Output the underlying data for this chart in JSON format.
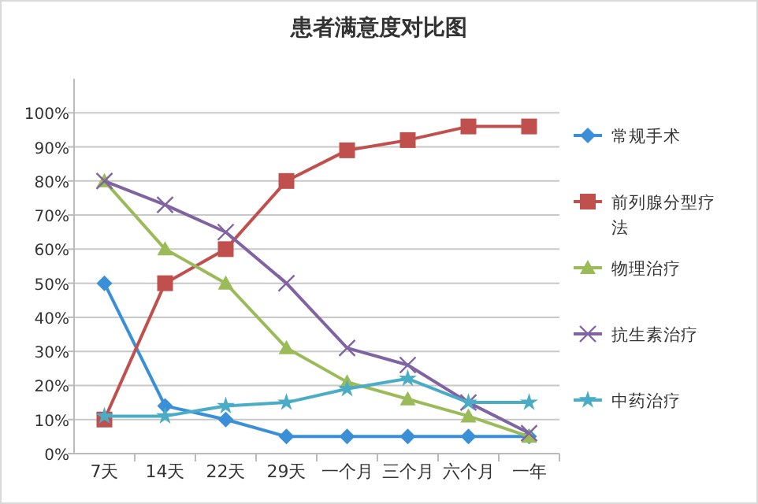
{
  "chart_data": {
    "type": "line",
    "title": "患者满意度对比图",
    "categories": [
      "7天",
      "14天",
      "22天",
      "29天",
      "一个月",
      "三个月",
      "六个月",
      "一年"
    ],
    "series": [
      {
        "name": "常规手术",
        "color": "#3a8fd6",
        "marker": "diamond",
        "values": [
          50,
          14,
          10,
          5,
          5,
          5,
          5,
          5
        ]
      },
      {
        "name": "前列腺分型疗法",
        "color": "#c0504d",
        "marker": "square",
        "values": [
          10,
          50,
          60,
          80,
          89,
          92,
          96,
          96
        ]
      },
      {
        "name": "物理治疗",
        "color": "#9bbb59",
        "marker": "triangle",
        "values": [
          80,
          60,
          50,
          31,
          21,
          16,
          11,
          5
        ]
      },
      {
        "name": "抗生素治疗",
        "color": "#8064a2",
        "marker": "cross",
        "values": [
          80,
          73,
          65,
          50,
          31,
          26,
          15,
          6
        ]
      },
      {
        "name": "中药治疗",
        "color": "#4bacc6",
        "marker": "star",
        "values": [
          11,
          11,
          14,
          15,
          19,
          22,
          15,
          15
        ]
      }
    ],
    "ylim": [
      0,
      110
    ],
    "yticks": [
      {
        "value": 0,
        "label": "0%"
      },
      {
        "value": 10,
        "label": "10%"
      },
      {
        "value": 20,
        "label": "20%"
      },
      {
        "value": 30,
        "label": "30%"
      },
      {
        "value": 40,
        "label": "40%"
      },
      {
        "value": 50,
        "label": "50%"
      },
      {
        "value": 60,
        "label": "60%"
      },
      {
        "value": 70,
        "label": "70%"
      },
      {
        "value": 80,
        "label": "80%"
      },
      {
        "value": 90,
        "label": "90%"
      },
      {
        "value": 100,
        "label": "100%"
      }
    ],
    "grid": "y",
    "legend": "right"
  }
}
